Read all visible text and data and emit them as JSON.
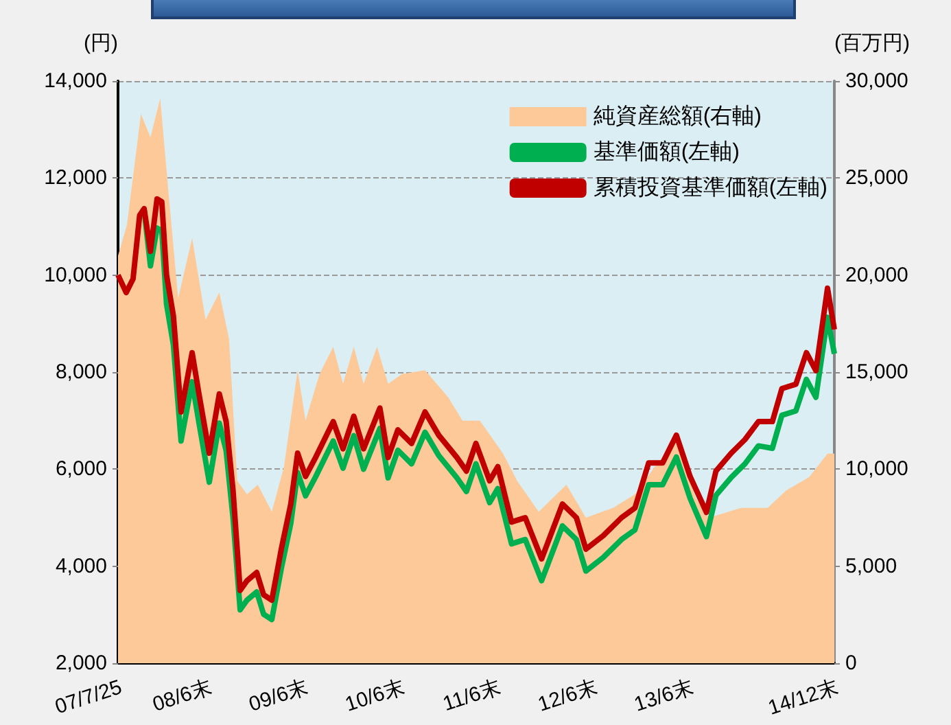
{
  "chart_data": {
    "type": "line",
    "ylabel": "(円)",
    "y2label": "(百万円)",
    "xlim": [
      "2007-07-25",
      "2014-12-31"
    ],
    "xticks": [
      {
        "value": "2007-07-25",
        "label": "07/7/25"
      },
      {
        "value": "2008-06-30",
        "label": "08/6末"
      },
      {
        "value": "2009-06-30",
        "label": "09/6末"
      },
      {
        "value": "2010-06-30",
        "label": "10/6末"
      },
      {
        "value": "2011-06-30",
        "label": "11/6末"
      },
      {
        "value": "2012-06-30",
        "label": "12/6末"
      },
      {
        "value": "2013-06-30",
        "label": "13/6末"
      },
      {
        "value": "2014-12-31",
        "label": "14/12末"
      }
    ],
    "ylim": [
      2000,
      14000
    ],
    "yticks": [
      {
        "value": 2000,
        "label": "2,000"
      },
      {
        "value": 4000,
        "label": "4,000"
      },
      {
        "value": 6000,
        "label": "6,000"
      },
      {
        "value": 8000,
        "label": "8,000"
      },
      {
        "value": 10000,
        "label": "10,000"
      },
      {
        "value": 12000,
        "label": "12,000"
      },
      {
        "value": 14000,
        "label": "14,000"
      }
    ],
    "y2lim": [
      0,
      30000
    ],
    "y2ticks": [
      0,
      {
        "value": 5000,
        "label": "5,000"
      },
      {
        "value": 10000,
        "label": "10,000"
      },
      {
        "value": 15000,
        "label": "15,000"
      },
      {
        "value": 20000,
        "label": "20,000"
      },
      {
        "value": 25000,
        "label": "25,000"
      },
      {
        "value": 30000,
        "label": "30,000"
      }
    ],
    "grid": "y",
    "legend": "top right",
    "series": [
      {
        "name": "純資産総額(右軸)",
        "type": "area",
        "axis": "y2",
        "color": "#fdc999",
        "x": [
          "2007-07-25",
          "2007-08-28",
          "2007-10-20",
          "2007-11-25",
          "2008-01-01",
          "2008-02-01",
          "2008-03-09",
          "2008-05-01",
          "2008-06-21",
          "2008-08-12",
          "2008-09-18",
          "2008-10-19",
          "2008-11-25",
          "2009-01-05",
          "2009-02-27",
          "2009-04-14",
          "2009-06-05",
          "2009-07-05",
          "2009-08-27",
          "2009-10-18",
          "2009-11-24",
          "2010-01-04",
          "2010-02-10",
          "2010-04-02",
          "2010-05-14",
          "2010-07-06",
          "2010-10-01",
          "2010-12-28",
          "2011-02-20",
          "2011-04-27",
          "2011-07-24",
          "2011-09-15",
          "2011-12-06",
          "2012-03-20",
          "2012-06-02",
          "2012-09-13",
          "2012-12-05",
          "2013-02-17",
          "2013-05-11",
          "2013-07-24",
          "2013-09-13",
          "2014-01-11",
          "2014-04-22",
          "2014-07-01",
          "2014-09-27",
          "2014-12-05",
          "2014-12-31"
        ],
        "values": [
          21000,
          22600,
          28300,
          27100,
          29100,
          24300,
          18800,
          21900,
          17700,
          19100,
          16700,
          9400,
          8700,
          9200,
          7800,
          10100,
          15100,
          12500,
          14900,
          16300,
          14400,
          16300,
          14400,
          16300,
          14400,
          14900,
          15100,
          13700,
          12500,
          12500,
          10800,
          9400,
          7800,
          9200,
          7500,
          8000,
          8700,
          10100,
          11500,
          8500,
          7500,
          8000,
          8000,
          8900,
          9600,
          10800,
          10800
        ]
      },
      {
        "name": "基準価額(左軸)",
        "color": "#00b050",
        "x": [
          "2007-11-01",
          "2007-11-25",
          "2007-12-20",
          "2008-01-07",
          "2008-01-25",
          "2008-02-20",
          "2008-03-20",
          "2008-05-01",
          "2008-05-27",
          "2008-07-05",
          "2008-08-12",
          "2008-09-07",
          "2008-10-03",
          "2008-10-30",
          "2008-11-25",
          "2009-01-01",
          "2009-01-27",
          "2009-02-27",
          "2009-04-04",
          "2009-05-10",
          "2009-06-05",
          "2009-07-05",
          "2009-08-12",
          "2009-10-18",
          "2009-11-24",
          "2010-01-04",
          "2010-02-10",
          "2010-04-13",
          "2010-05-14",
          "2010-06-20",
          "2010-08-11",
          "2010-10-01",
          "2010-11-22",
          "2011-01-30",
          "2011-03-07",
          "2011-04-12",
          "2011-06-03",
          "2011-07-04",
          "2011-08-25",
          "2011-10-16",
          "2011-12-17",
          "2012-03-05",
          "2012-04-27",
          "2012-06-02",
          "2012-08-07",
          "2012-10-15",
          "2012-12-05",
          "2013-01-26",
          "2013-03-20",
          "2013-05-11",
          "2013-07-02",
          "2013-09-02",
          "2013-10-08",
          "2013-12-05",
          "2014-01-26",
          "2014-03-18",
          "2014-05-10",
          "2014-06-15",
          "2014-08-07",
          "2014-09-16",
          "2014-10-22",
          "2014-12-05",
          "2014-12-31"
        ],
        "values": [
          11340,
          10190,
          10970,
          10910,
          9400,
          8560,
          6580,
          7800,
          6950,
          5730,
          6950,
          6380,
          5000,
          3100,
          3300,
          3470,
          3010,
          2900,
          3950,
          4880,
          5930,
          5450,
          5840,
          6580,
          6020,
          6690,
          6000,
          6840,
          5820,
          6390,
          6110,
          6760,
          6280,
          5820,
          5540,
          6110,
          5310,
          5600,
          4460,
          4550,
          3700,
          4830,
          4550,
          3900,
          4180,
          4550,
          4750,
          5680,
          5680,
          6250,
          5400,
          4610,
          5460,
          5830,
          6110,
          6480,
          6430,
          7110,
          7200,
          7850,
          7480,
          9130,
          8380
        ]
      },
      {
        "name": "累積投資基準価額(左軸)",
        "color": "#c00000",
        "x": [
          "2007-07-25",
          "2007-08-25",
          "2007-09-20",
          "2007-10-15",
          "2007-11-01",
          "2007-11-25",
          "2007-12-20",
          "2008-01-07",
          "2008-01-25",
          "2008-02-20",
          "2008-03-20",
          "2008-05-01",
          "2008-05-27",
          "2008-07-05",
          "2008-08-12",
          "2008-09-07",
          "2008-10-03",
          "2008-10-30",
          "2008-11-25",
          "2009-01-01",
          "2009-01-27",
          "2009-02-27",
          "2009-04-04",
          "2009-05-10",
          "2009-06-05",
          "2009-07-05",
          "2009-08-12",
          "2009-10-18",
          "2009-11-24",
          "2010-01-04",
          "2010-02-10",
          "2010-04-13",
          "2010-05-14",
          "2010-06-20",
          "2010-08-11",
          "2010-10-01",
          "2010-11-22",
          "2011-01-30",
          "2011-03-07",
          "2011-04-12",
          "2011-06-03",
          "2011-07-04",
          "2011-08-25",
          "2011-10-16",
          "2011-12-17",
          "2012-03-05",
          "2012-04-27",
          "2012-06-02",
          "2012-08-07",
          "2012-10-15",
          "2012-12-05",
          "2013-01-26",
          "2013-03-20",
          "2013-05-11",
          "2013-07-02",
          "2013-09-02",
          "2013-10-08",
          "2013-12-05",
          "2014-01-26",
          "2014-03-18",
          "2014-05-10",
          "2014-06-15",
          "2014-08-07",
          "2014-09-16",
          "2014-10-22",
          "2014-12-05",
          "2014-12-31"
        ],
        "values": [
          10000,
          9640,
          9920,
          11230,
          11370,
          10490,
          11570,
          11510,
          10000,
          9160,
          7180,
          8400,
          7550,
          6330,
          7550,
          6980,
          5570,
          3500,
          3700,
          3870,
          3410,
          3300,
          4350,
          5280,
          6330,
          5850,
          6240,
          6980,
          6420,
          7090,
          6420,
          7260,
          6240,
          6810,
          6530,
          7180,
          6700,
          6240,
          5960,
          6530,
          5760,
          6050,
          4910,
          5000,
          4150,
          5280,
          5000,
          4350,
          4630,
          5000,
          5200,
          6130,
          6130,
          6700,
          5850,
          5110,
          5960,
          6330,
          6610,
          6980,
          6980,
          7660,
          7750,
          8400,
          8030,
          9730,
          8880
        ]
      }
    ]
  }
}
